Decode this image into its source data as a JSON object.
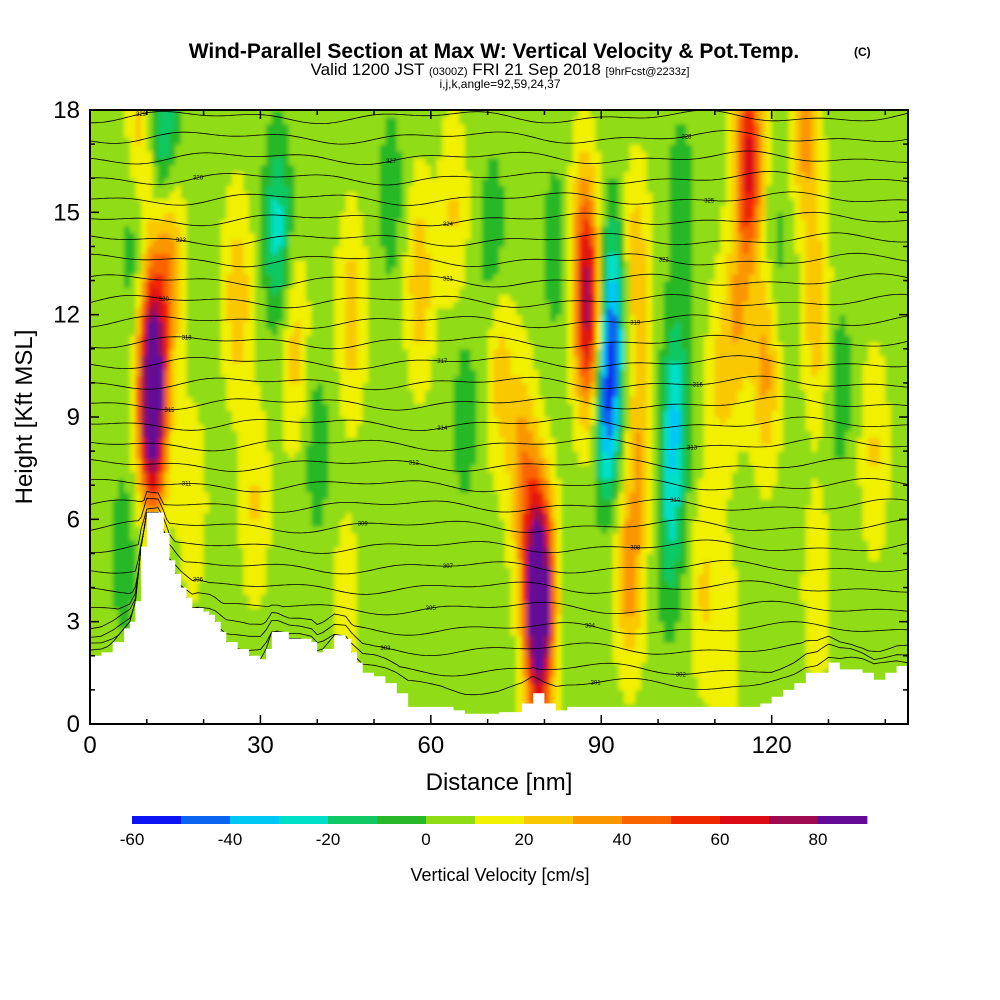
{
  "chart_data": {
    "type": "heatmap",
    "title": "Wind-Parallel Section at Max W: Vertical Velocity & Pot.Temp.",
    "title_mark": "(C)",
    "subtitle": {
      "prefix": "Valid 1200 JST",
      "utc": "(0300Z)",
      "date": "FRI 21 Sep 2018",
      "forecast": "[9hrFcst@2233z]"
    },
    "subtitle2": "i,j,k,angle=92,59,24,37",
    "xlabel": "Distance [nm]",
    "ylabel": "Height [Kft MSL]",
    "xlim": [
      0,
      144
    ],
    "ylim": [
      0,
      18
    ],
    "x_ticks": [
      0,
      30,
      60,
      90,
      120
    ],
    "y_ticks": [
      0,
      3,
      6,
      9,
      12,
      15,
      18
    ],
    "colorbar": {
      "label": "Vertical Velocity [cm/s]",
      "min": -60,
      "max": 90,
      "step": 10,
      "tick_values": [
        -60,
        -40,
        -20,
        0,
        20,
        40,
        60,
        80
      ],
      "colors": [
        "#0a14f0",
        "#0a64f0",
        "#00c8f5",
        "#00e0c8",
        "#10c864",
        "#28b828",
        "#90dc14",
        "#f0f000",
        "#fac800",
        "#fa9600",
        "#fa6400",
        "#f02800",
        "#dc0a14",
        "#a00a50",
        "#640a96"
      ]
    },
    "terrain_kft": [
      [
        0,
        2.0
      ],
      [
        2,
        2.1
      ],
      [
        4,
        2.4
      ],
      [
        6,
        2.8
      ],
      [
        7,
        3.0
      ],
      [
        8,
        3.6
      ],
      [
        9,
        5.2
      ],
      [
        10,
        6.2
      ],
      [
        12,
        6.2
      ],
      [
        13,
        5.6
      ],
      [
        14,
        4.8
      ],
      [
        15,
        4.4
      ],
      [
        16,
        4.0
      ],
      [
        17,
        3.7
      ],
      [
        18,
        3.4
      ],
      [
        19,
        3.4
      ],
      [
        20,
        3.3
      ],
      [
        21,
        3.2
      ],
      [
        22,
        3.0
      ],
      [
        23,
        2.7
      ],
      [
        24,
        2.4
      ],
      [
        26,
        2.2
      ],
      [
        28,
        2.0
      ],
      [
        30,
        1.9
      ],
      [
        31,
        2.2
      ],
      [
        32,
        2.7
      ],
      [
        33,
        2.7
      ],
      [
        35,
        2.5
      ],
      [
        37,
        2.5
      ],
      [
        39,
        2.4
      ],
      [
        40,
        2.1
      ],
      [
        41,
        2.2
      ],
      [
        43,
        2.6
      ],
      [
        45,
        2.5
      ],
      [
        46,
        2.1
      ],
      [
        47,
        1.8
      ],
      [
        48,
        1.5
      ],
      [
        50,
        1.4
      ],
      [
        52,
        1.2
      ],
      [
        54,
        0.9
      ],
      [
        56,
        0.5
      ],
      [
        58,
        0.5
      ],
      [
        62,
        0.5
      ],
      [
        64,
        0.4
      ],
      [
        66,
        0.3
      ],
      [
        68,
        0.3
      ],
      [
        72,
        0.35
      ],
      [
        76,
        0.6
      ],
      [
        78,
        0.9
      ],
      [
        80,
        0.6
      ],
      [
        82,
        0.4
      ],
      [
        84,
        0.5
      ],
      [
        88,
        0.5
      ],
      [
        92,
        0.5
      ],
      [
        96,
        0.5
      ],
      [
        100,
        0.5
      ],
      [
        104,
        0.5
      ],
      [
        110,
        0.5
      ],
      [
        114,
        0.5
      ],
      [
        116,
        0.5
      ],
      [
        118,
        0.6
      ],
      [
        120,
        0.8
      ],
      [
        122,
        1.0
      ],
      [
        124,
        1.2
      ],
      [
        126,
        1.5
      ],
      [
        128,
        1.5
      ],
      [
        130,
        1.8
      ],
      [
        132,
        1.6
      ],
      [
        134,
        1.6
      ],
      [
        136,
        1.5
      ],
      [
        138,
        1.3
      ],
      [
        140,
        1.5
      ],
      [
        142,
        1.7
      ],
      [
        144,
        1.7
      ]
    ],
    "theta_contours_K": [
      {
        "base_kft": 1.0,
        "value": "301",
        "label_x": 89
      },
      {
        "base_kft": 1.6,
        "value": "302",
        "label_x": 104
      },
      {
        "base_kft": 2.2,
        "value": "303",
        "label_x": 52
      },
      {
        "base_kft": 2.8,
        "value": "304",
        "label_x": 88
      },
      {
        "base_kft": 3.4,
        "value": "305",
        "label_x": 60
      },
      {
        "base_kft": 4.0,
        "value": "306",
        "label_x": 19
      },
      {
        "base_kft": 4.6,
        "value": "307",
        "label_x": 63
      },
      {
        "base_kft": 5.2,
        "value": "308",
        "label_x": 96
      },
      {
        "base_kft": 5.8,
        "value": "309",
        "label_x": 48
      },
      {
        "base_kft": 6.4,
        "value": "310",
        "label_x": 103
      },
      {
        "base_kft": 7.0,
        "value": "311",
        "label_x": 17
      },
      {
        "base_kft": 7.6,
        "value": "312",
        "label_x": 57
      },
      {
        "base_kft": 8.2,
        "value": "313",
        "label_x": 106
      },
      {
        "base_kft": 8.8,
        "value": "314",
        "label_x": 62
      },
      {
        "base_kft": 9.4,
        "value": "315",
        "label_x": 14
      },
      {
        "base_kft": 10.0,
        "value": "316",
        "label_x": 107
      },
      {
        "base_kft": 10.6,
        "value": "317",
        "label_x": 62
      },
      {
        "base_kft": 11.2,
        "value": "318",
        "label_x": 17
      },
      {
        "base_kft": 11.8,
        "value": "319",
        "label_x": 96
      },
      {
        "base_kft": 12.4,
        "value": "320",
        "label_x": 13
      },
      {
        "base_kft": 13.0,
        "value": "321",
        "label_x": 63
      },
      {
        "base_kft": 13.6,
        "value": "322",
        "label_x": 101
      },
      {
        "base_kft": 14.2,
        "value": "323",
        "label_x": 16
      },
      {
        "base_kft": 14.8,
        "value": "324",
        "label_x": 63
      },
      {
        "base_kft": 15.4,
        "value": "325",
        "label_x": 109
      },
      {
        "base_kft": 16.0,
        "value": "326",
        "label_x": 19
      },
      {
        "base_kft": 16.6,
        "value": "327",
        "label_x": 53
      },
      {
        "base_kft": 17.2,
        "value": "328",
        "label_x": 105
      },
      {
        "base_kft": 17.8,
        "value": "329",
        "label_x": 9
      }
    ],
    "w_features_cm_s": [
      {
        "x": 11,
        "z": 9.0,
        "w": 85
      },
      {
        "x": 11,
        "z": 11.5,
        "w": 45
      },
      {
        "x": 14,
        "z": 13.5,
        "w": 30
      },
      {
        "x": 8,
        "z": 14.0,
        "w": -15
      },
      {
        "x": 9,
        "z": 17.0,
        "w": 20
      },
      {
        "x": 13,
        "z": 17.5,
        "w": -30
      },
      {
        "x": 26,
        "z": 12.5,
        "w": 22
      },
      {
        "x": 33,
        "z": 14.5,
        "w": -30
      },
      {
        "x": 29,
        "z": 6.5,
        "w": 15
      },
      {
        "x": 36,
        "z": 11.0,
        "w": 18
      },
      {
        "x": 40,
        "z": 8.0,
        "w": -12
      },
      {
        "x": 46,
        "z": 12.0,
        "w": 20
      },
      {
        "x": 53,
        "z": 15.5,
        "w": -12
      },
      {
        "x": 58,
        "z": 13.0,
        "w": 22
      },
      {
        "x": 66,
        "z": 9.0,
        "w": -12
      },
      {
        "x": 64,
        "z": 15.0,
        "w": 15
      },
      {
        "x": 71,
        "z": 14.0,
        "w": -15
      },
      {
        "x": 72,
        "z": 10.5,
        "w": 20
      },
      {
        "x": 79,
        "z": 4.5,
        "w": 75
      },
      {
        "x": 79,
        "z": 2.5,
        "w": 60
      },
      {
        "x": 76,
        "z": 7.5,
        "w": 30
      },
      {
        "x": 82,
        "z": 14.0,
        "w": -12
      },
      {
        "x": 88,
        "z": 11.5,
        "w": 55
      },
      {
        "x": 87,
        "z": 14.0,
        "w": 35
      },
      {
        "x": 91,
        "z": 9.5,
        "w": -55
      },
      {
        "x": 92,
        "z": 12.5,
        "w": -35
      },
      {
        "x": 95,
        "z": 4.5,
        "w": 30
      },
      {
        "x": 97,
        "z": 8.5,
        "w": 22
      },
      {
        "x": 96,
        "z": 13.5,
        "w": 22
      },
      {
        "x": 103,
        "z": 9.0,
        "w": -35
      },
      {
        "x": 102,
        "z": 5.5,
        "w": -20
      },
      {
        "x": 104,
        "z": 15.0,
        "w": -15
      },
      {
        "x": 108,
        "z": 4.0,
        "w": 15
      },
      {
        "x": 111,
        "z": 10.0,
        "w": 15
      },
      {
        "x": 116,
        "z": 16.5,
        "w": 60
      },
      {
        "x": 119,
        "z": 10.5,
        "w": 28
      },
      {
        "x": 114,
        "z": 12.0,
        "w": 22
      },
      {
        "x": 121,
        "z": 13.5,
        "w": -10
      },
      {
        "x": 128,
        "z": 12.0,
        "w": 22
      },
      {
        "x": 132,
        "z": 10.0,
        "w": -12
      },
      {
        "x": 128,
        "z": 4.0,
        "w": 12
      },
      {
        "x": 138,
        "z": 8.0,
        "w": 15
      },
      {
        "x": 126,
        "z": 17.5,
        "w": 30
      },
      {
        "x": 6,
        "z": 5.0,
        "w": -12
      },
      {
        "x": 18,
        "z": 6.5,
        "w": 12
      },
      {
        "x": 45,
        "z": 3.5,
        "w": 10
      },
      {
        "x": 112,
        "z": 2.5,
        "w": 10
      }
    ]
  }
}
